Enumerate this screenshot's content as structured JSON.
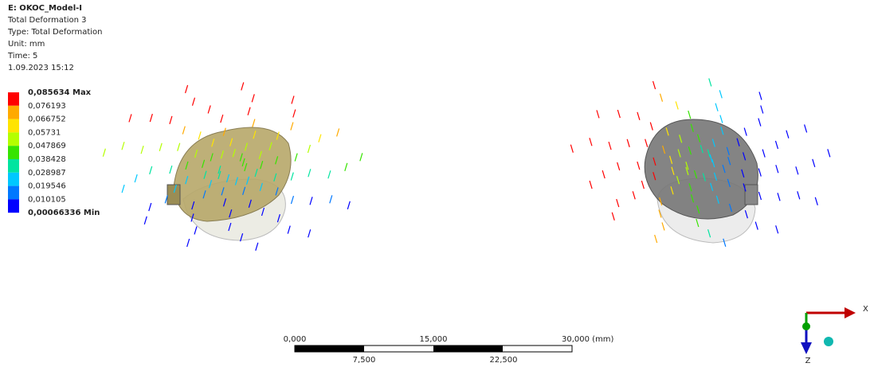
{
  "header": {
    "title": "E: OKOC_Model-I",
    "lines": [
      "Total Deformation 3",
      "Type: Total Deformation",
      "Unit: mm",
      "Time: 5",
      "1.09.2023 15:12"
    ]
  },
  "legend": {
    "labels": [
      "0,085634 Max",
      "0,076193",
      "0,066752",
      "0,05731",
      "0,047869",
      "0,038428",
      "0,028987",
      "0,019546",
      "0,010105",
      "0,00066336 Min"
    ],
    "colors": [
      "#ff0000",
      "#ffaa00",
      "#ffe400",
      "#b4ff00",
      "#36e400",
      "#00e4a0",
      "#00c8ff",
      "#0078ff",
      "#0000ff"
    ]
  },
  "scale_bar": {
    "top_labels": [
      "0,000",
      "15,000",
      "30,000 (mm)"
    ],
    "bottom_labels": [
      "7,500",
      "22,500"
    ]
  },
  "triad": {
    "x_label": "X",
    "z_label": "Z"
  }
}
